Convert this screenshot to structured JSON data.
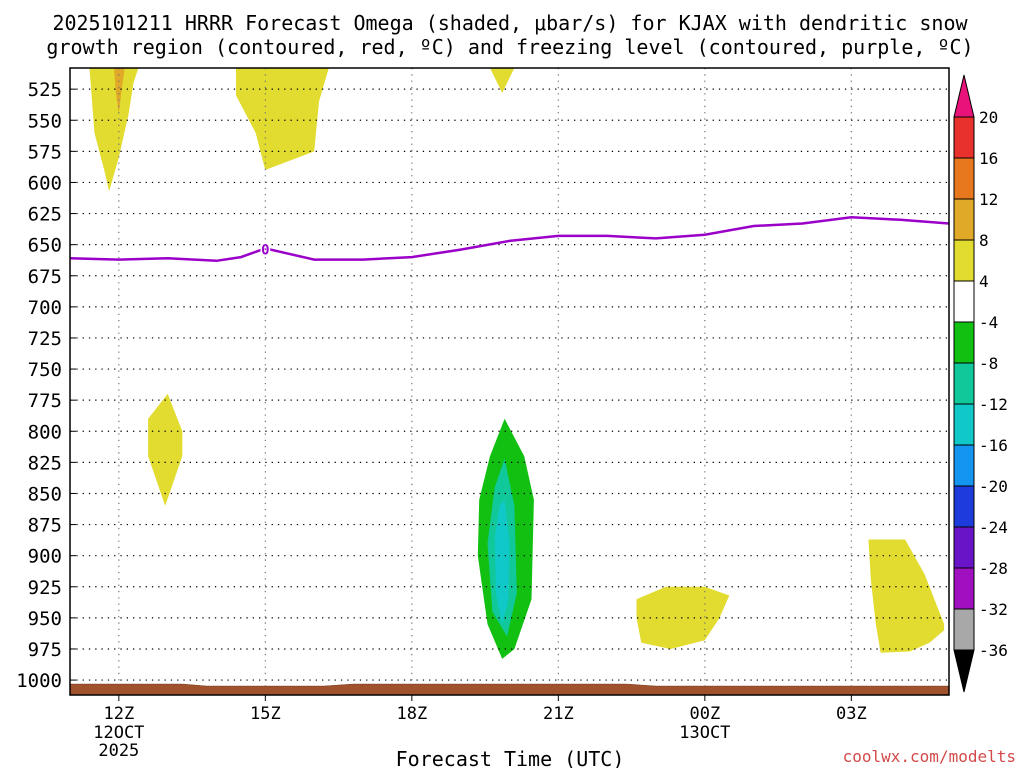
{
  "chart_data": {
    "type": "contour-time-height",
    "title_lines": [
      "2025101211 HRRR Forecast Omega (shaded, μbar/s) for KJAX with dendritic snow",
      "growth region (contoured, red, ºC) and freezing level (contoured, purple, ºC)"
    ],
    "xlabel": "Forecast Time (UTC)",
    "watermark": "coolwx.com/modelts",
    "x_range_hours": [
      -1,
      17
    ],
    "x_ticks": [
      {
        "hour": 0,
        "label": "12Z",
        "sub": [
          "12OCT",
          "2025"
        ]
      },
      {
        "hour": 3,
        "label": "15Z",
        "sub": []
      },
      {
        "hour": 6,
        "label": "18Z",
        "sub": []
      },
      {
        "hour": 9,
        "label": "21Z",
        "sub": []
      },
      {
        "hour": 12,
        "label": "00Z",
        "sub": [
          "13OCT"
        ]
      },
      {
        "hour": 15,
        "label": "03Z",
        "sub": []
      }
    ],
    "y_range_hpa": [
      508,
      1012
    ],
    "y_ticks": [
      525,
      550,
      575,
      600,
      625,
      650,
      675,
      700,
      725,
      750,
      775,
      800,
      825,
      850,
      875,
      900,
      925,
      950,
      975,
      1000
    ],
    "colorbar": {
      "levels": [
        "20",
        "16",
        "12",
        "8",
        "4",
        "-4",
        "-8",
        "-12",
        "-16",
        "-20",
        "-24",
        "-28",
        "-32",
        "-36"
      ],
      "colors": [
        "#e8127a",
        "#e8302c",
        "#e8781e",
        "#e0aa28",
        "#e2dc30",
        "#ffffff",
        "#12c012",
        "#10c89a",
        "#10c8c8",
        "#1496f0",
        "#1e3cdc",
        "#6a14c8",
        "#a010c0",
        "#a8a8a8",
        "#000000"
      ]
    },
    "freezing_level": {
      "label": "0",
      "color": "#9b00c8",
      "hours": [
        -1,
        0,
        1,
        2,
        2.5,
        3,
        4,
        5,
        6,
        7,
        8,
        9,
        10,
        11,
        12,
        13,
        14,
        15,
        16,
        17
      ],
      "pressure_hpa": [
        661,
        662,
        661,
        663,
        660,
        653,
        662,
        662,
        660,
        654,
        647,
        643,
        643,
        645,
        642,
        635,
        633,
        628,
        630,
        633
      ]
    },
    "surface_pressure_hpa": 1004,
    "shaded_regions": [
      {
        "name": "upward-motion-1",
        "fill": "#e2dc30",
        "points": [
          [
            -0.6,
            508
          ],
          [
            0.4,
            508
          ],
          [
            0.3,
            520
          ],
          [
            0.2,
            545
          ],
          [
            0.0,
            580
          ],
          [
            -0.2,
            607
          ],
          [
            -0.3,
            590
          ],
          [
            -0.5,
            560
          ]
        ]
      },
      {
        "name": "upward-motion-1-core",
        "fill": "#e0aa28",
        "points": [
          [
            -0.1,
            508
          ],
          [
            0.12,
            508
          ],
          [
            0.05,
            528
          ],
          [
            0.0,
            545
          ],
          [
            -0.06,
            528
          ]
        ]
      },
      {
        "name": "upward-motion-2",
        "fill": "#e2dc30",
        "points": [
          [
            2.4,
            508
          ],
          [
            4.3,
            508
          ],
          [
            4.1,
            535
          ],
          [
            4.0,
            575
          ],
          [
            3.0,
            590
          ],
          [
            2.8,
            560
          ],
          [
            2.4,
            530
          ]
        ]
      },
      {
        "name": "upward-motion-3",
        "fill": "#e2dc30",
        "points": [
          [
            7.6,
            508
          ],
          [
            8.1,
            508
          ],
          [
            7.85,
            528
          ]
        ]
      },
      {
        "name": "upward-motion-4",
        "fill": "#e2dc30",
        "points": [
          [
            1.0,
            770
          ],
          [
            1.3,
            800
          ],
          [
            1.3,
            820
          ],
          [
            0.95,
            860
          ],
          [
            0.6,
            820
          ],
          [
            0.6,
            790
          ]
        ]
      },
      {
        "name": "downward-motion-outer",
        "fill": "#12c012",
        "points": [
          [
            7.9,
            790
          ],
          [
            8.3,
            820
          ],
          [
            8.5,
            855
          ],
          [
            8.45,
            935
          ],
          [
            8.1,
            975
          ],
          [
            7.85,
            983
          ],
          [
            7.55,
            955
          ],
          [
            7.35,
            900
          ],
          [
            7.38,
            855
          ],
          [
            7.6,
            820
          ]
        ]
      },
      {
        "name": "downward-motion-mid",
        "fill": "#10c89a",
        "points": [
          [
            7.9,
            822
          ],
          [
            8.1,
            860
          ],
          [
            8.15,
            930
          ],
          [
            7.95,
            965
          ],
          [
            7.65,
            945
          ],
          [
            7.55,
            890
          ],
          [
            7.7,
            845
          ]
        ]
      },
      {
        "name": "downward-motion-core",
        "fill": "#10c8c8",
        "points": [
          [
            7.9,
            855
          ],
          [
            8.0,
            890
          ],
          [
            7.98,
            935
          ],
          [
            7.85,
            955
          ],
          [
            7.72,
            930
          ],
          [
            7.7,
            885
          ],
          [
            7.8,
            860
          ]
        ]
      },
      {
        "name": "upward-motion-5",
        "fill": "#e2dc30",
        "points": [
          [
            10.6,
            935
          ],
          [
            11.2,
            925
          ],
          [
            12.0,
            925
          ],
          [
            12.5,
            932
          ],
          [
            12.3,
            950
          ],
          [
            12.0,
            968
          ],
          [
            11.3,
            975
          ],
          [
            10.7,
            970
          ],
          [
            10.6,
            950
          ]
        ]
      },
      {
        "name": "upward-motion-6",
        "fill": "#e2dc30",
        "points": [
          [
            15.35,
            887
          ],
          [
            16.1,
            887
          ],
          [
            16.5,
            915
          ],
          [
            16.9,
            955
          ],
          [
            16.9,
            960
          ],
          [
            16.6,
            970
          ],
          [
            16.2,
            977
          ],
          [
            15.6,
            978
          ],
          [
            15.5,
            955
          ],
          [
            15.4,
            920
          ]
        ]
      }
    ]
  }
}
